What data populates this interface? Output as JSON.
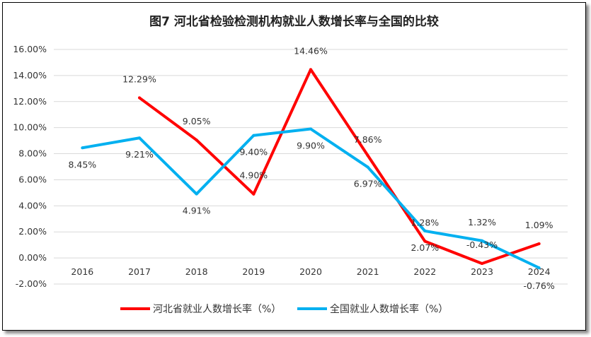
{
  "chart_data": {
    "type": "line",
    "title": "图7  河北省检验检测机构就业人数增长率与全国的比较",
    "categories": [
      "2016",
      "2017",
      "2018",
      "2019",
      "2020",
      "2021",
      "2022",
      "2023",
      "2024"
    ],
    "ylim": [
      -2,
      16
    ],
    "yticks": [
      "-2.00%",
      "0.00%",
      "2.00%",
      "4.00%",
      "6.00%",
      "8.00%",
      "10.00%",
      "12.00%",
      "14.00%",
      "16.00%"
    ],
    "grid": true,
    "legend_position": "bottom",
    "series": [
      {
        "name": "河北省就业人数增长率（%）",
        "color": "#ff0000",
        "values": [
          null,
          12.29,
          9.05,
          4.9,
          14.46,
          7.86,
          1.28,
          -0.43,
          1.09
        ],
        "labels": [
          "",
          "12.29%",
          "9.05%",
          "4.90%",
          "14.46%",
          "7.86%",
          "1.28%",
          "-0.43%",
          "1.09%"
        ]
      },
      {
        "name": "全国就业人数增长率（%）",
        "color": "#00b0f0",
        "values": [
          8.45,
          9.21,
          4.91,
          9.4,
          9.9,
          6.97,
          2.07,
          1.32,
          -0.76
        ],
        "labels": [
          "8.45%",
          "9.21%",
          "4.91%",
          "9.40%",
          "9.90%",
          "6.97%",
          "2.07%",
          "1.32%",
          "-0.76%"
        ]
      }
    ]
  }
}
